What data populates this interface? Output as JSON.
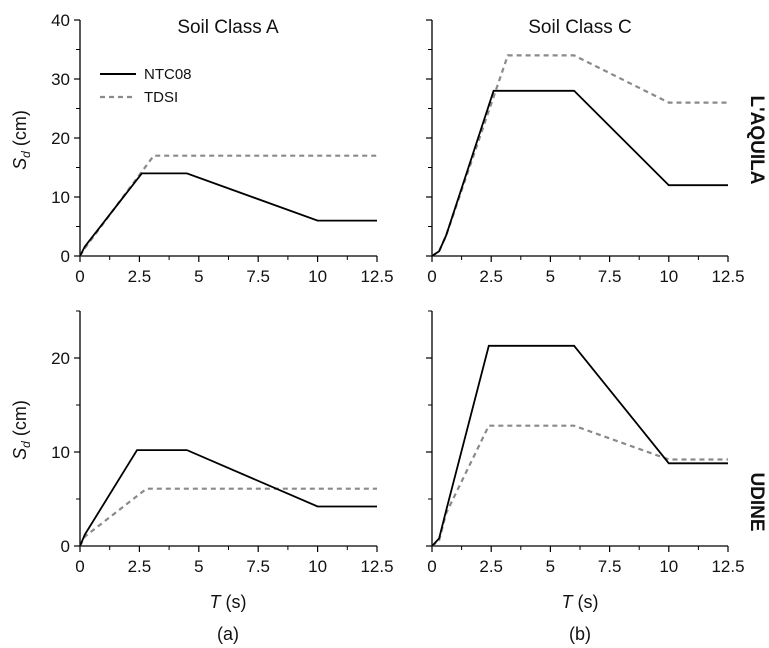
{
  "figure": {
    "column_titles": [
      "Soil Class A",
      "Soil Class C"
    ],
    "row_labels": [
      "L'AQUILA",
      "UDINE"
    ],
    "subfigure_labels": [
      "(a)",
      "(b)"
    ],
    "ylabel_main": "S",
    "ylabel_sub": "d",
    "ylabel_unit": " (cm)",
    "xlabel_main": "T",
    "xlabel_unit": " (s)",
    "legend": [
      {
        "label": "NTC08",
        "style": "solid"
      },
      {
        "label": "TDSI",
        "style": "dashed"
      }
    ]
  },
  "colors": {
    "ntc08": "#000000",
    "tdsi": "#8a8a8a"
  },
  "chart_data": [
    {
      "type": "line",
      "title": "Soil Class A",
      "row": "L'AQUILA",
      "xlabel": "",
      "ylabel": "Sd (cm)",
      "xlim": [
        0,
        12.5
      ],
      "ylim": [
        0,
        40
      ],
      "xticks": [
        "0",
        "2.5",
        "5",
        "7.5",
        "10",
        "12.5"
      ],
      "yticks": [
        "0",
        "10",
        "20",
        "30",
        "40"
      ],
      "series": [
        {
          "name": "NTC08",
          "x": [
            0,
            0.2,
            2.6,
            4.5,
            10,
            12.5
          ],
          "y": [
            0,
            1.6,
            14,
            14,
            6,
            6
          ]
        },
        {
          "name": "TDSI",
          "x": [
            0,
            0.2,
            3.1,
            12.5
          ],
          "y": [
            0,
            1.3,
            17,
            17
          ]
        }
      ]
    },
    {
      "type": "line",
      "title": "Soil Class C",
      "row": "L'AQUILA",
      "xlabel": "",
      "ylabel": "",
      "xlim": [
        0,
        12.5
      ],
      "ylim": [
        0,
        40
      ],
      "xticks": [
        "0",
        "2.5",
        "5",
        "7.5",
        "10",
        "12.5"
      ],
      "yticks": [],
      "series": [
        {
          "name": "NTC08",
          "x": [
            0,
            0.3,
            0.6,
            2.6,
            6,
            10,
            12.5
          ],
          "y": [
            0,
            0.8,
            3.5,
            28,
            28,
            12,
            12
          ]
        },
        {
          "name": "TDSI",
          "x": [
            0,
            0.3,
            0.6,
            3.2,
            6,
            10,
            12.5
          ],
          "y": [
            0,
            0.8,
            3.5,
            34,
            34,
            26,
            26
          ]
        }
      ]
    },
    {
      "type": "line",
      "title": "",
      "row": "UDINE",
      "xlabel": "T (s)",
      "ylabel": "Sd (cm)",
      "xlim": [
        0,
        12.5
      ],
      "ylim": [
        0,
        25
      ],
      "xticks": [
        "0",
        "2.5",
        "5",
        "7.5",
        "10",
        "12.5"
      ],
      "yticks": [
        "0",
        "10",
        "20"
      ],
      "series": [
        {
          "name": "NTC08",
          "x": [
            0,
            0.2,
            2.4,
            4.5,
            10,
            12.5
          ],
          "y": [
            0,
            1.2,
            10.2,
            10.2,
            4.2,
            4.2
          ]
        },
        {
          "name": "TDSI",
          "x": [
            0,
            0.2,
            2.8,
            12.5
          ],
          "y": [
            0,
            1.0,
            6.1,
            6.1
          ]
        }
      ]
    },
    {
      "type": "line",
      "title": "",
      "row": "UDINE",
      "xlabel": "T (s)",
      "ylabel": "",
      "xlim": [
        0,
        12.5
      ],
      "ylim": [
        0,
        25
      ],
      "xticks": [
        "0",
        "2.5",
        "5",
        "7.5",
        "10",
        "12.5"
      ],
      "yticks": [],
      "series": [
        {
          "name": "NTC08",
          "x": [
            0,
            0.3,
            0.6,
            2.4,
            6,
            10,
            12.5
          ],
          "y": [
            0,
            0.8,
            3.8,
            21.3,
            21.3,
            8.8,
            8.8
          ]
        },
        {
          "name": "TDSI",
          "x": [
            0,
            0.3,
            0.6,
            2.4,
            6,
            10,
            12.5
          ],
          "y": [
            0,
            0.6,
            3.5,
            12.8,
            12.8,
            9.2,
            9.2
          ]
        }
      ]
    }
  ]
}
